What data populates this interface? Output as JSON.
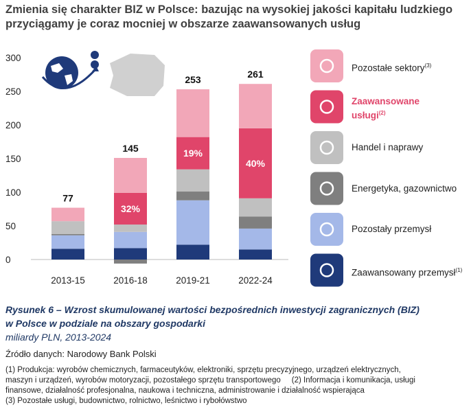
{
  "chart_data": {
    "type": "stacked-bar",
    "title_lines": [
      "Zmienia się charakter BIZ w Polsce: bazując na wysokiej jakości kapitału ludzkiego",
      "przyciągamy je coraz mocniej w obszarze zaawansowanych usług"
    ],
    "categories": [
      "2013-15",
      "2016-18",
      "2019-21",
      "2022-24"
    ],
    "series": [
      {
        "name": "Zaawansowany przemysł",
        "note": "(1)",
        "color": "#1f3a7a",
        "values": [
          16,
          17,
          22,
          15
        ]
      },
      {
        "name": "Pozostały przemysł",
        "color": "#a4b8e8",
        "values": [
          20,
          24,
          66,
          31
        ]
      },
      {
        "name": "Energetyka, gazownictwo",
        "color": "#7f7f7f",
        "values": [
          2,
          -6,
          13,
          18
        ]
      },
      {
        "name": "Handel i naprawy",
        "color": "#c0c0c0",
        "values": [
          19,
          11,
          33,
          27
        ]
      },
      {
        "name": "Zaawansowane usługi",
        "note": "(2)",
        "color": "#e0456a",
        "highlight": true,
        "values": [
          0,
          47,
          48,
          104
        ],
        "share_of_total": [
          null,
          32,
          19,
          40
        ],
        "share_labels": [
          null,
          "32%",
          "19%",
          "40%"
        ]
      },
      {
        "name": "Pozostałe sektory",
        "note": "(3)",
        "color": "#f2a7b8",
        "values": [
          20,
          52,
          71,
          66
        ]
      }
    ],
    "totals": [
      77,
      145,
      253,
      261
    ],
    "ylim": [
      -10,
      300
    ],
    "yticks": [
      0,
      50,
      100,
      150,
      200,
      250,
      300
    ],
    "grid": false,
    "caption_lines": [
      "Rysunek 6 – Wzrost skumulowanej wartości bezpośrednich inwestycji zagranicznych (BIZ)",
      "w Polsce w podziale na obszary gospodarki"
    ],
    "unit": "miliardy PLN, 2013-2024",
    "source": "Źródło danych: Narodowy Bank Polski",
    "footnotes": [
      "(1) Produkcja: wyrobów chemicznych, farmaceutyków, elektroniki, sprzętu precyzyjnego, urządzeń elektrycznych,",
      "maszyn i urządzeń, wyrobów motoryzacji, pozostałego sprzętu transportowego     (2) Informacja i komunikacja, usługi",
      "finansowe, działalność profesjonalna, naukowa i techniczna, administrowanie i działalność wspierająca",
      "(3) Pozostałe usługi, budownictwo, rolnictwo, leśnictwo i rybołówstwo"
    ]
  }
}
